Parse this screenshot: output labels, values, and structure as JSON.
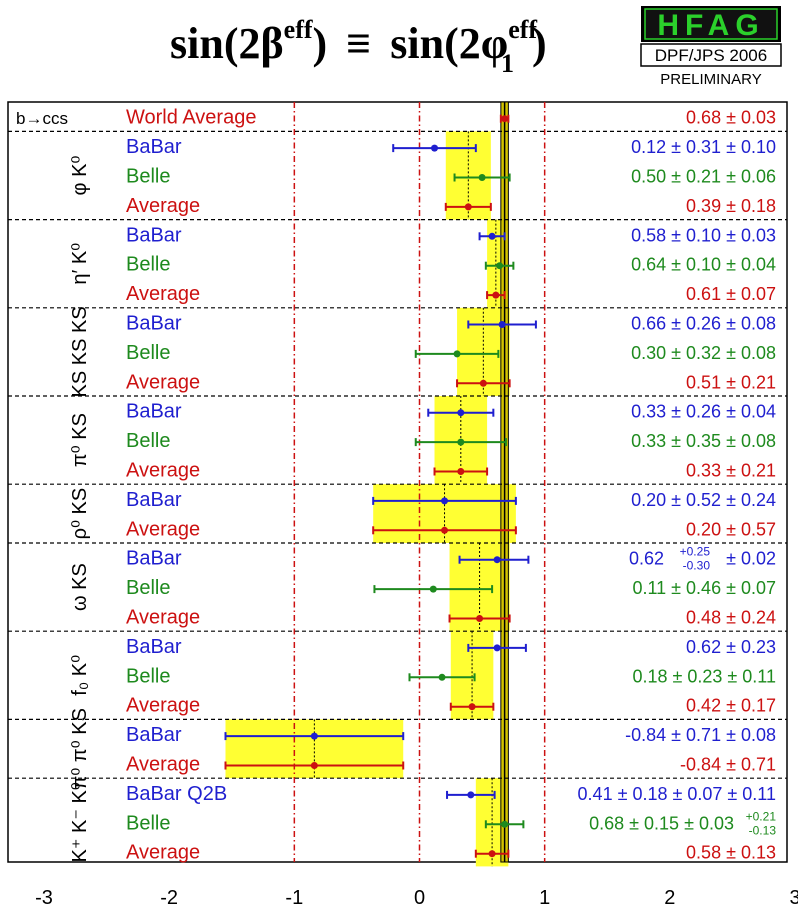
{
  "title": {
    "main": "sin(2β",
    "main_sup": "eff",
    "equiv": "≡",
    "second": "sin(2φ",
    "second_sub": "1",
    "second_sup": "eff",
    "close": ")"
  },
  "hfag": {
    "logo": "HFAG",
    "conference": "DPF/JPS 2006",
    "status": "PRELIMINARY"
  },
  "watermark": "HFAG DPF/JPS 2006",
  "colors": {
    "babar": "#1f1fcf",
    "belle": "#1e8a1e",
    "average": "#cc1111",
    "band": "#ffff33",
    "world_band": "#d4c400",
    "guide": "#cc1111"
  },
  "chart_data": {
    "type": "scatter",
    "title": "sin(2βeff) ≡ sin(2φ1eff)",
    "xlim": [
      -3,
      3
    ],
    "x_ticks": [
      "-3",
      "-2",
      "-1",
      "0",
      "1",
      "2",
      "3"
    ],
    "world_average": {
      "name": "World Average",
      "group": "b→ccs",
      "value": 0.68,
      "err": 0.03,
      "text": "0.68 ± 0.03"
    },
    "groups": [
      {
        "name": "φ K⁰",
        "rows": [
          {
            "label": "BaBar",
            "exp": "babar",
            "value": 0.12,
            "err": 0.33,
            "text": "0.12 ± 0.31 ± 0.10"
          },
          {
            "label": "Belle",
            "exp": "belle",
            "value": 0.5,
            "err": 0.22,
            "text": "0.50 ± 0.21 ± 0.06"
          },
          {
            "label": "Average",
            "exp": "average",
            "value": 0.39,
            "err": 0.18,
            "text": "0.39 ± 0.18"
          }
        ]
      },
      {
        "name": "η′ K⁰",
        "rows": [
          {
            "label": "BaBar",
            "exp": "babar",
            "value": 0.58,
            "err": 0.1,
            "text": "0.58 ± 0.10 ± 0.03"
          },
          {
            "label": "Belle",
            "exp": "belle",
            "value": 0.64,
            "err": 0.11,
            "text": "0.64 ± 0.10 ± 0.04"
          },
          {
            "label": "Average",
            "exp": "average",
            "value": 0.61,
            "err": 0.07,
            "text": "0.61 ± 0.07"
          }
        ]
      },
      {
        "name": "KS KS KS",
        "rows": [
          {
            "label": "BaBar",
            "exp": "babar",
            "value": 0.66,
            "err": 0.27,
            "text": "0.66 ± 0.26 ± 0.08"
          },
          {
            "label": "Belle",
            "exp": "belle",
            "value": 0.3,
            "err": 0.33,
            "text": "0.30 ± 0.32 ± 0.08"
          },
          {
            "label": "Average",
            "exp": "average",
            "value": 0.51,
            "err": 0.21,
            "text": "0.51 ± 0.21"
          }
        ]
      },
      {
        "name": "π⁰ KS",
        "rows": [
          {
            "label": "BaBar",
            "exp": "babar",
            "value": 0.33,
            "err": 0.26,
            "text": "0.33 ± 0.26 ± 0.04"
          },
          {
            "label": "Belle",
            "exp": "belle",
            "value": 0.33,
            "err": 0.36,
            "text": "0.33 ± 0.35 ± 0.08"
          },
          {
            "label": "Average",
            "exp": "average",
            "value": 0.33,
            "err": 0.21,
            "text": "0.33 ± 0.21"
          }
        ]
      },
      {
        "name": "ρ⁰ KS",
        "rows": [
          {
            "label": "BaBar",
            "exp": "babar",
            "value": 0.2,
            "err": 0.57,
            "text": "0.20 ± 0.52 ± 0.24"
          },
          {
            "label": "Average",
            "exp": "average",
            "value": 0.2,
            "err": 0.57,
            "text": "0.20 ± 0.57"
          }
        ]
      },
      {
        "name": "ω KS",
        "rows": [
          {
            "label": "BaBar",
            "exp": "babar",
            "value": 0.62,
            "err_lo": 0.3,
            "err_hi": 0.25,
            "text_main": "0.62",
            "text_up": "+0.25",
            "text_down": "-0.30",
            "text_tail": "± 0.02"
          },
          {
            "label": "Belle",
            "exp": "belle",
            "value": 0.11,
            "err": 0.47,
            "text": "0.11 ± 0.46 ± 0.07"
          },
          {
            "label": "Average",
            "exp": "average",
            "value": 0.48,
            "err": 0.24,
            "text": "0.48 ± 0.24"
          }
        ]
      },
      {
        "name": "f₀ K⁰",
        "rows": [
          {
            "label": "BaBar",
            "exp": "babar",
            "value": 0.62,
            "err": 0.23,
            "text": "0.62 ± 0.23"
          },
          {
            "label": "Belle",
            "exp": "belle",
            "value": 0.18,
            "err": 0.26,
            "text": "0.18 ± 0.23 ± 0.11"
          },
          {
            "label": "Average",
            "exp": "average",
            "value": 0.42,
            "err": 0.17,
            "text": "0.42 ± 0.17"
          }
        ]
      },
      {
        "name": "π⁰ π⁰ KS",
        "rows": [
          {
            "label": "BaBar",
            "exp": "babar",
            "value": -0.84,
            "err": 0.71,
            "text": "-0.84 ± 0.71 ± 0.08"
          },
          {
            "label": "Average",
            "exp": "average",
            "value": -0.84,
            "err": 0.71,
            "text": "-0.84 ± 0.71"
          }
        ]
      },
      {
        "name": "K⁺ K⁻ K⁰",
        "rows": [
          {
            "label": "BaBar Q2B",
            "exp": "babar",
            "value": 0.41,
            "err": 0.19,
            "text": "0.41 ± 0.18 ± 0.07 ± 0.11"
          },
          {
            "label": "Belle",
            "exp": "belle",
            "value": 0.68,
            "err_lo": 0.15,
            "err_hi": 0.15,
            "text_main": "0.68 ± 0.15 ± 0.03",
            "text_up": "+0.21",
            "text_down": "-0.13",
            "text_tail": ""
          },
          {
            "label": "Average",
            "exp": "average",
            "value": 0.58,
            "err": 0.13,
            "text": "0.58 ± 0.13"
          }
        ]
      }
    ]
  }
}
